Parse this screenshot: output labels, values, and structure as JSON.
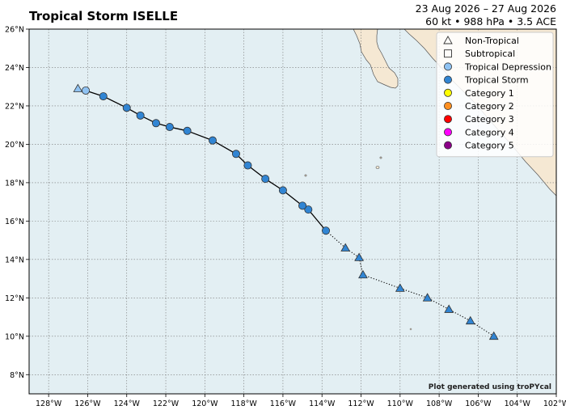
{
  "header": {
    "title": "Tropical Storm ISELLE",
    "dates": "23 Aug 2026 – 27 Aug 2026",
    "stats": "60 kt • 988 hPa • 3.5 ACE"
  },
  "credit": "Plot generated using troPYcal",
  "map": {
    "lon_range": [
      -129,
      -102
    ],
    "lat_range": [
      7,
      26
    ],
    "ocean_color": "#e3eff3",
    "land_color": "#f5e8d3",
    "grid": true,
    "lon_ticks": [
      "128°W",
      "126°W",
      "124°W",
      "122°W",
      "120°W",
      "118°W",
      "116°W",
      "114°W",
      "112°W",
      "110°W",
      "108°W",
      "106°W",
      "104°W",
      "102°W"
    ],
    "lon_tick_values": [
      -128,
      -126,
      -124,
      -122,
      -120,
      -118,
      -116,
      -114,
      -112,
      -110,
      -108,
      -106,
      -104,
      -102
    ],
    "lat_ticks": [
      "8°N",
      "10°N",
      "12°N",
      "14°N",
      "16°N",
      "18°N",
      "20°N",
      "22°N",
      "24°N",
      "26°N"
    ],
    "lat_tick_values": [
      8,
      10,
      12,
      14,
      16,
      18,
      20,
      22,
      24,
      26
    ]
  },
  "legend": {
    "placement": "top-right",
    "items": [
      {
        "label": "Non-Tropical",
        "marker": "triangle-open",
        "color": "#ffffff"
      },
      {
        "label": "Subtropical",
        "marker": "square-open",
        "color": "#ffffff"
      },
      {
        "label": "Tropical Depression",
        "marker": "circle",
        "color": "#8fc2f2"
      },
      {
        "label": "Tropical Storm",
        "marker": "circle",
        "color": "#3185d3"
      },
      {
        "label": "Category 1",
        "marker": "circle",
        "color": "#ffff00"
      },
      {
        "label": "Category 2",
        "marker": "circle",
        "color": "#ff8f20"
      },
      {
        "label": "Category 3",
        "marker": "circle",
        "color": "#ff0000"
      },
      {
        "label": "Category 4",
        "marker": "circle",
        "color": "#ff00fc"
      },
      {
        "label": "Category 5",
        "marker": "circle",
        "color": "#8b0088"
      }
    ]
  },
  "track": [
    {
      "lon": -105.2,
      "lat": 10.0,
      "marker": "triangle",
      "color": "#3185d3"
    },
    {
      "lon": -106.4,
      "lat": 10.8,
      "marker": "triangle",
      "color": "#3185d3"
    },
    {
      "lon": -107.5,
      "lat": 11.4,
      "marker": "triangle",
      "color": "#3185d3"
    },
    {
      "lon": -108.6,
      "lat": 12.0,
      "marker": "triangle",
      "color": "#3185d3"
    },
    {
      "lon": -110.0,
      "lat": 12.5,
      "marker": "triangle",
      "color": "#3185d3"
    },
    {
      "lon": -111.9,
      "lat": 13.2,
      "marker": "triangle",
      "color": "#3185d3"
    },
    {
      "lon": -112.1,
      "lat": 14.1,
      "marker": "triangle",
      "color": "#3185d3"
    },
    {
      "lon": -112.8,
      "lat": 14.6,
      "marker": "triangle",
      "color": "#3185d3"
    },
    {
      "lon": -113.8,
      "lat": 15.5,
      "marker": "circle",
      "color": "#3185d3"
    },
    {
      "lon": -114.7,
      "lat": 16.6,
      "marker": "circle",
      "color": "#3185d3"
    },
    {
      "lon": -115.0,
      "lat": 16.8,
      "marker": "circle",
      "color": "#3185d3"
    },
    {
      "lon": -116.0,
      "lat": 17.6,
      "marker": "circle",
      "color": "#3185d3"
    },
    {
      "lon": -116.9,
      "lat": 18.2,
      "marker": "circle",
      "color": "#3185d3"
    },
    {
      "lon": -117.8,
      "lat": 18.9,
      "marker": "circle",
      "color": "#3185d3"
    },
    {
      "lon": -118.4,
      "lat": 19.5,
      "marker": "circle",
      "color": "#3185d3"
    },
    {
      "lon": -119.6,
      "lat": 20.2,
      "marker": "circle",
      "color": "#3185d3"
    },
    {
      "lon": -120.9,
      "lat": 20.7,
      "marker": "circle",
      "color": "#3185d3"
    },
    {
      "lon": -121.8,
      "lat": 20.9,
      "marker": "circle",
      "color": "#3185d3"
    },
    {
      "lon": -122.5,
      "lat": 21.1,
      "marker": "circle",
      "color": "#3185d3"
    },
    {
      "lon": -123.3,
      "lat": 21.5,
      "marker": "circle",
      "color": "#3185d3"
    },
    {
      "lon": -124.0,
      "lat": 21.9,
      "marker": "circle",
      "color": "#3185d3"
    },
    {
      "lon": -125.2,
      "lat": 22.5,
      "marker": "circle",
      "color": "#3185d3"
    },
    {
      "lon": -126.1,
      "lat": 22.8,
      "marker": "circle",
      "color": "#8fc2f2"
    },
    {
      "lon": -126.5,
      "lat": 22.9,
      "marker": "triangle",
      "color": "#8fc2f2"
    }
  ],
  "track_line_styles": {
    "non_tropical": "dotted",
    "tropical": "solid"
  }
}
